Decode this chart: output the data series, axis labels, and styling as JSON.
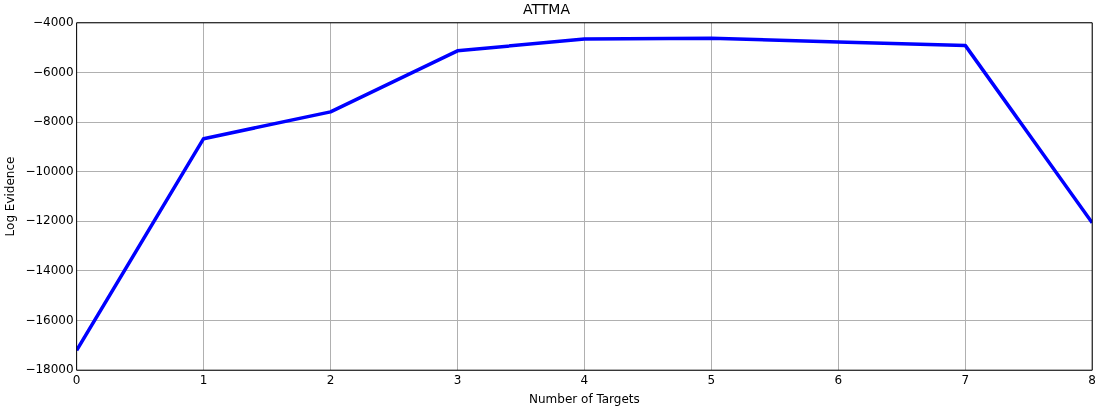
{
  "chart_data": {
    "type": "line",
    "title": "ATTMA",
    "xlabel": "Number of Targets",
    "ylabel": "Log Evidence",
    "x": [
      0,
      1,
      2,
      3,
      4,
      5,
      6,
      7,
      8
    ],
    "series": [
      {
        "color": "#0000ff",
        "values": [
          -17200,
          -8670,
          -7590,
          -5130,
          -4650,
          -4620,
          -4770,
          -4910,
          -12060
        ]
      }
    ],
    "xlim": [
      0,
      8
    ],
    "xticks": [
      0,
      1,
      2,
      3,
      4,
      5,
      6,
      7,
      8
    ],
    "ylim": [
      -18000,
      -4000
    ],
    "yticks": [
      -18000,
      -16000,
      -14000,
      -12000,
      -10000,
      -8000,
      -6000,
      -4000
    ],
    "grid": true,
    "marker": "none",
    "line_style": "solid",
    "legend": false
  }
}
